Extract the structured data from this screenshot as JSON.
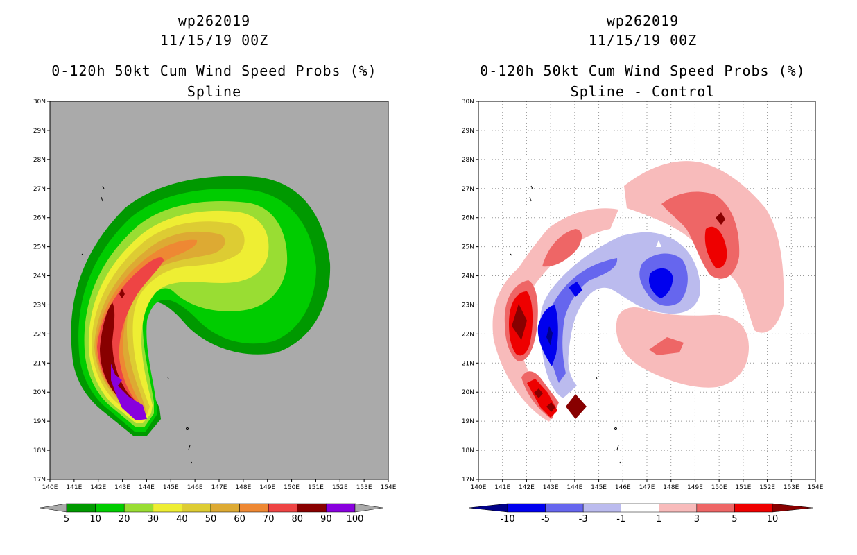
{
  "chart_data": [
    {
      "type": "contour",
      "title_lines": [
        "wp262019",
        "11/15/19 00Z",
        "0-120h 50kt Cum Wind Speed Probs (%)",
        "Spline"
      ],
      "x_range_deg_e": [
        140,
        154
      ],
      "y_range_deg_n": [
        17,
        30
      ],
      "x_ticks": [
        "140E",
        "141E",
        "142E",
        "143E",
        "144E",
        "145E",
        "146E",
        "147E",
        "148E",
        "149E",
        "150E",
        "151E",
        "152E",
        "153E",
        "154E"
      ],
      "y_ticks": [
        "17N",
        "18N",
        "19N",
        "20N",
        "21N",
        "22N",
        "23N",
        "24N",
        "25N",
        "26N",
        "27N",
        "28N",
        "29N",
        "30N"
      ],
      "background": "#aaaaaa",
      "colorbar": {
        "labels": [
          "5",
          "10",
          "20",
          "30",
          "40",
          "50",
          "60",
          "70",
          "80",
          "90",
          "100"
        ],
        "colors": [
          "#aaaaaa",
          "#009900",
          "#00cc00",
          "#99dd33",
          "#eeee33",
          "#ddcc33",
          "#ddaa33",
          "#ee8833",
          "#ee4444",
          "#880000",
          "#8800dd",
          "#aaaaaa"
        ]
      },
      "contour_levels": [
        5,
        10,
        20,
        30,
        40,
        50,
        60,
        70,
        80,
        90,
        100
      ],
      "dataset_note": "Cumulative 50kt wind speed probability swath curving from ~19N 144E northward to ~25N then eastward to ~150E"
    },
    {
      "type": "contour",
      "title_lines": [
        "wp262019",
        "11/15/19 00Z",
        "0-120h 50kt Cum Wind Speed Probs (%)",
        "Spline - Control"
      ],
      "x_range_deg_e": [
        140,
        154
      ],
      "y_range_deg_n": [
        17,
        30
      ],
      "x_ticks": [
        "140E",
        "141E",
        "142E",
        "143E",
        "144E",
        "145E",
        "146E",
        "147E",
        "148E",
        "149E",
        "150E",
        "151E",
        "152E",
        "153E",
        "154E"
      ],
      "y_ticks": [
        "17N",
        "18N",
        "19N",
        "20N",
        "21N",
        "22N",
        "23N",
        "24N",
        "25N",
        "26N",
        "27N",
        "28N",
        "29N",
        "30N"
      ],
      "background": "#ffffff",
      "grid": true,
      "colorbar": {
        "labels": [
          "-10",
          "-5",
          "-3",
          "-1",
          "1",
          "3",
          "5",
          "10"
        ],
        "colors": [
          "#000088",
          "#0000ee",
          "#6666ee",
          "#bbbbee",
          "#ffffff",
          "#f8bbbb",
          "#ee6666",
          "#ee0000",
          "#880000"
        ]
      },
      "contour_levels": [
        -10,
        -5,
        -3,
        -1,
        1,
        3,
        5,
        10
      ]
    }
  ]
}
